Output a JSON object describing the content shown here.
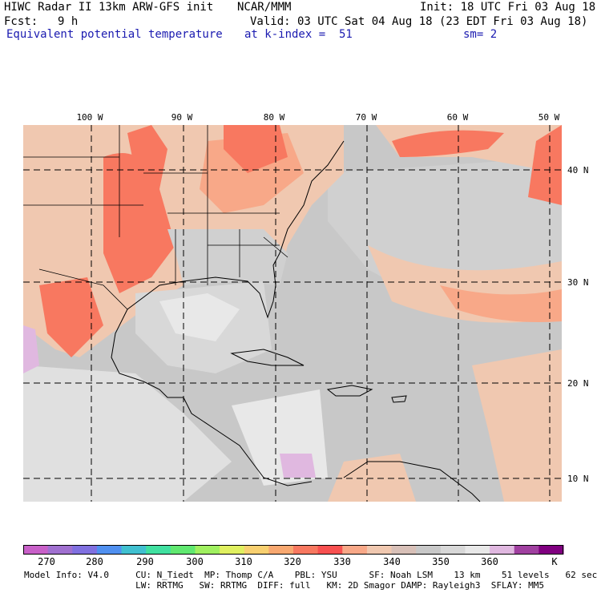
{
  "header": {
    "line1_left": "HIWC Radar II 13km ARW-GFS init",
    "line1_mid": "NCAR/MMM",
    "line1_right": "Init: 18 UTC Fri 03 Aug 18",
    "line2_left_label": "Fcst:",
    "line2_left_value": "9 h",
    "line2_right": "Valid: 03 UTC Sat 04 Aug 18 (23 EDT Fri 03 Aug 18)",
    "line3_left": "Equivalent potential temperature",
    "line3_mid": "at k-index =  51",
    "line3_right": "sm= 2"
  },
  "map": {
    "longitude_labels": [
      "100 W",
      "90 W",
      "80 W",
      "70 W",
      "60 W",
      "50 W"
    ],
    "latitude_labels": [
      "40 N",
      "30 N",
      "20 N",
      "10 N"
    ]
  },
  "colorbar": {
    "ticks": [
      "270",
      "280",
      "290",
      "300",
      "310",
      "320",
      "330",
      "340",
      "350",
      "360"
    ],
    "unit": "K",
    "colors": [
      "#c860c8",
      "#a070d0",
      "#8070e0",
      "#5090f0",
      "#40c0d0",
      "#40e0a0",
      "#60e870",
      "#a0f060",
      "#e0f060",
      "#f8d070",
      "#f8a870",
      "#f87860",
      "#f85050",
      "#f8a888",
      "#f0c8b0",
      "#d8c0b8",
      "#c8c8c8",
      "#d8d8d8",
      "#e8e8e8",
      "#e0b8e0",
      "#a040a0",
      "#800080"
    ]
  },
  "footer": {
    "line1": "Model Info: V4.0     CU: N_Tiedt  MP: Thomp C/A    PBL: YSU      SF: Noah LSM    13 km    51 levels   62 sec",
    "line2": "                     LW: RRTMG   SW: RRTMG  DIFF: full   KM: 2D Smagor DAMP: Rayleigh3  SFLAY: MM5"
  }
}
